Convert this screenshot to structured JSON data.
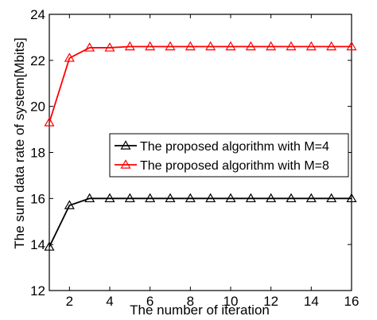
{
  "chart_data": {
    "type": "line",
    "title": "",
    "xlabel": "The number of iteration",
    "ylabel": "The sum data rate of system[Mbits]",
    "xlim": [
      1,
      16
    ],
    "ylim": [
      12,
      24
    ],
    "xticks": [
      2,
      4,
      6,
      8,
      10,
      12,
      14,
      16
    ],
    "yticks": [
      12,
      14,
      16,
      18,
      20,
      22,
      24
    ],
    "grid": false,
    "legend_position": "center-right",
    "x": [
      1,
      2,
      3,
      4,
      5,
      6,
      7,
      8,
      9,
      10,
      11,
      12,
      13,
      14,
      15,
      16
    ],
    "series": [
      {
        "name": "The proposed algorithm with M=4",
        "color": "#000000",
        "marker": "triangle",
        "values": [
          13.9,
          15.7,
          16.0,
          16.0,
          16.0,
          16.0,
          16.0,
          16.0,
          16.0,
          16.0,
          16.0,
          16.0,
          16.0,
          16.0,
          16.0,
          16.0
        ]
      },
      {
        "name": "The proposed algorithm with M=8",
        "color": "#ff0000",
        "marker": "triangle",
        "values": [
          19.3,
          22.1,
          22.55,
          22.55,
          22.6,
          22.6,
          22.6,
          22.6,
          22.6,
          22.6,
          22.6,
          22.6,
          22.6,
          22.6,
          22.6,
          22.6
        ]
      }
    ]
  }
}
